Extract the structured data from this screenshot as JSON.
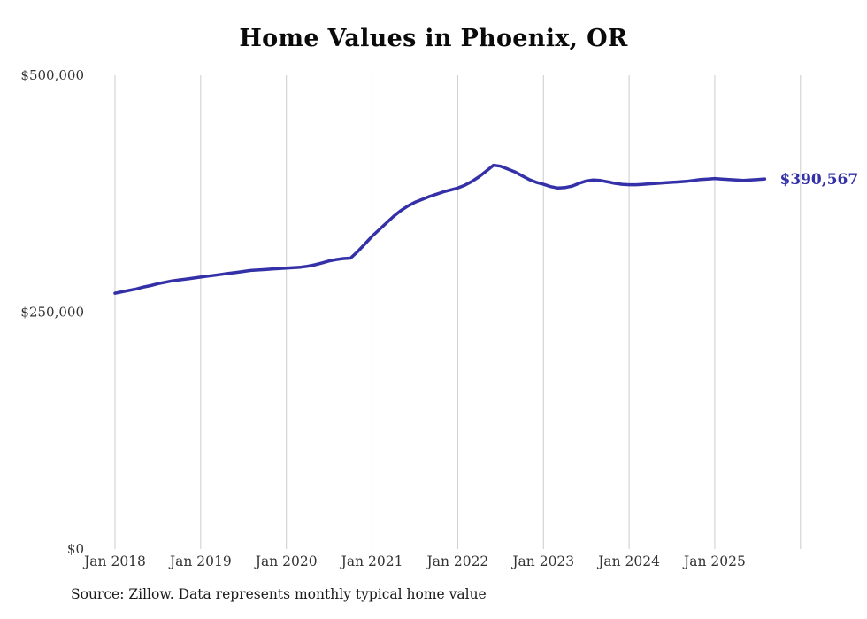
{
  "title": "Home Values in Phoenix, OR",
  "source_note": "Source: Zillow. Data represents monthly typical home value",
  "end_label": "$390,567",
  "colors": {
    "line": "#3431a8",
    "grid": "#cccccc",
    "axis_text": "#333333",
    "title_text": "#0a0a0a",
    "end_label_text": "#3431a8",
    "background": "#ffffff"
  },
  "chart_data": {
    "type": "line",
    "title": "Home Values in Phoenix, OR",
    "x_start": "Jan 2018",
    "frequency": "monthly",
    "x_tick_labels": [
      "Jan 2018",
      "Jan 2019",
      "Jan 2020",
      "Jan 2021",
      "Jan 2022",
      "Jan 2023",
      "Jan 2024",
      "Jan 2025"
    ],
    "y_tick_labels": [
      "$0",
      "$250,000",
      "$500,000"
    ],
    "y_tick_values": [
      0,
      250000,
      500000
    ],
    "ylim": [
      0,
      500000
    ],
    "grid": "vertical-only",
    "legend": "none",
    "series_name": "Typical home value",
    "end_value": 390567,
    "values": [
      270000,
      271500,
      273000,
      274500,
      276500,
      278000,
      280000,
      281500,
      283000,
      284000,
      285000,
      286000,
      287000,
      288000,
      289000,
      290000,
      291000,
      292000,
      293000,
      294000,
      294500,
      295000,
      295500,
      296000,
      296500,
      297000,
      297500,
      298500,
      300000,
      302000,
      304000,
      305500,
      306500,
      307000,
      314000,
      322000,
      330000,
      337000,
      344000,
      351000,
      357000,
      362000,
      366000,
      369000,
      372000,
      374500,
      377000,
      379000,
      381000,
      384000,
      388000,
      393000,
      399000,
      405000,
      404000,
      401000,
      398000,
      394000,
      390000,
      387000,
      385000,
      382500,
      381000,
      381500,
      383000,
      386000,
      388500,
      389500,
      389000,
      387500,
      386000,
      385000,
      384500,
      384500,
      385000,
      385500,
      386000,
      386500,
      387000,
      387500,
      388000,
      389000,
      390000,
      390500,
      391000,
      390500,
      390000,
      389500,
      389000,
      389500,
      390000,
      390567
    ]
  }
}
